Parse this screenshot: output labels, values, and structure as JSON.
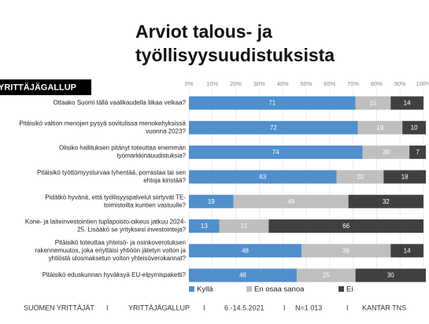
{
  "chart_data": {
    "type": "stacked-bar-horizontal",
    "title": [
      "Arviot talous- ja",
      "työllisyysuudistuksista"
    ],
    "badge": "YRITTÄJÄGALLUP",
    "categories": [
      [
        "Ottaako Suomi tällä vaalikaudella liikaa velkaa?"
      ],
      [
        "Pitäisikö valtion menojen pysyä sovitulissa menokehyksissä",
        "vuonna 2023?"
      ],
      [
        "Olisiko hallituksen pitänyt toteuttaa enemmän",
        "työmarkkinauudistuksia?"
      ],
      [
        "Pitäisikö työttömyysturvaa lyhentää, porrastaa tai sen",
        "ehtoja kiristää?"
      ],
      [
        "Pidätkö hyvänä, että työllisyyspalvelut siirtyvät TE-",
        "toimistoilta kuntien vastuulle?"
      ],
      [
        "Kone- ja laiteinvestointien tuplapoisto-oikeus jatkuu 2024-",
        "25. Lisääkö se yrityksesi investointeja?"
      ],
      [
        "Pitäisikö toteuttaa yhteisö- ja osinkoverotuksen",
        "rakennemuutos, joka eriyttäisi yhtiöön jätetyn voiton ja",
        "yhtiöstä ulosmaksetun voiton yhteisöverokannat?"
      ],
      [
        "Pitäisikö eduskunnan hyväksyä EU-elpymispaketti?"
      ]
    ],
    "series": [
      {
        "name": "Kyllä",
        "color": "#4f8fcc",
        "values": [
          71,
          72,
          74,
          63,
          19,
          13,
          48,
          46
        ]
      },
      {
        "name": "En osaa sanoa",
        "color": "#bfbfbf",
        "values": [
          15,
          19,
          20,
          20,
          49,
          21,
          38,
          25
        ]
      },
      {
        "name": "Ei",
        "color": "#404040",
        "values": [
          14,
          10,
          7,
          18,
          32,
          66,
          14,
          30
        ]
      }
    ],
    "xlim": [
      0,
      100
    ],
    "xticks": [
      {
        "value": 0,
        "label": "0%"
      },
      {
        "value": 10,
        "label": "10%"
      },
      {
        "value": 20,
        "label": "20%"
      },
      {
        "value": 30,
        "label": "30%"
      },
      {
        "value": 40,
        "label": "40%"
      },
      {
        "value": 50,
        "label": "50%"
      },
      {
        "value": 60,
        "label": "60%"
      },
      {
        "value": 70,
        "label": "70%"
      },
      {
        "value": 80,
        "label": "80%"
      },
      {
        "value": 90,
        "label": "90%"
      },
      {
        "value": 100,
        "label": "100%"
      }
    ],
    "grid": true,
    "legend": "bottom",
    "footer": {
      "items": [
        "SUOMEN YRITTÄJÄT",
        "YRITTÄJÄGALLUP",
        "6.-14.5.2021",
        "N=1 013",
        "KANTAR TNS"
      ],
      "separator": "I"
    }
  }
}
